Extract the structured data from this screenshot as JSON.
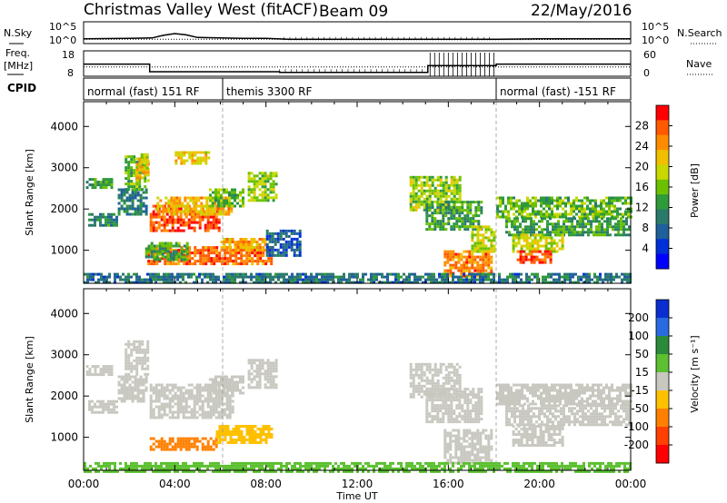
{
  "header": {
    "station": "Christmas Valley West (fitACF)",
    "beam": "Beam 09",
    "date": "22/May/2016"
  },
  "side_labels": {
    "nsky": "N.Sky",
    "nsearch": "N.Search",
    "freq": "Freq.",
    "freq_unit": "[MHz]",
    "nave": "Nave",
    "cpid": "CPID"
  },
  "chart_data": [
    {
      "type": "line",
      "panel": "noise",
      "series": [
        {
          "name": "N.Sky",
          "x": [
            0,
            2,
            3,
            3.5,
            4,
            4.5,
            5,
            6,
            7,
            8,
            8.5,
            9,
            10,
            12,
            14,
            15,
            16,
            18,
            18.2,
            20,
            22,
            24
          ],
          "values": [
            1.1,
            1.2,
            1.3,
            1.9,
            2.3,
            2.0,
            1.4,
            1.3,
            1.2,
            1.2,
            1.1,
            1.0,
            1.0,
            1.0,
            1.0,
            1.0,
            1.0,
            1.0,
            1.0,
            1.1,
            1.1,
            1.1
          ]
        },
        {
          "name": "N.Search",
          "x": [
            0,
            3,
            6,
            8.6,
            9,
            15,
            18,
            18.1,
            24
          ],
          "values": [
            1.0,
            1.0,
            1.0,
            1.0,
            0.9,
            0.9,
            0.9,
            0.9,
            1.0
          ]
        }
      ],
      "ylim": [
        0,
        5
      ],
      "ytick_labels": [
        "10^5",
        "10^0"
      ]
    },
    {
      "type": "line",
      "panel": "frequency",
      "series": [
        {
          "name": "Freq.",
          "x": [
            0,
            2.9,
            2.9,
            8.6,
            8.6,
            15.1,
            15.1,
            18.1,
            18.1,
            24
          ],
          "values": [
            12.8,
            12.8,
            9.8,
            9.8,
            9.5,
            9.5,
            12.2,
            12.2,
            12.8,
            12.8
          ]
        },
        {
          "name": "Nave",
          "x": [
            0,
            24
          ],
          "values": [
            22,
            22
          ]
        }
      ],
      "ylim": [
        8,
        18
      ],
      "ytick_labels_left": [
        "18",
        "8"
      ],
      "ytick_labels_right": [
        "60",
        "0"
      ]
    },
    {
      "type": "table",
      "panel": "cpid",
      "segments": [
        {
          "start": 0,
          "end": 6.1,
          "label": "normal (fast) 151 RF"
        },
        {
          "start": 6.1,
          "end": 18.1,
          "label": "themis 3300 RF"
        },
        {
          "start": 18.1,
          "end": 24,
          "label": "normal (fast) -151 RF"
        }
      ]
    },
    {
      "type": "heatmap",
      "panel": "power",
      "ylabel": "Slant Range [km]",
      "ylim": [
        200,
        4600
      ],
      "xlim": [
        0,
        24
      ],
      "yticks": [
        1000,
        2000,
        3000,
        4000
      ],
      "colorbar": {
        "label": "Power [dB]",
        "ticks": [
          "28",
          "24",
          "20",
          "16",
          "12",
          "8",
          "4"
        ],
        "colors": [
          "#ff0000",
          "#ff5a00",
          "#ff8c00",
          "#f0c000",
          "#c8d800",
          "#6cc000",
          "#2e9a3a",
          "#2a7a6a",
          "#1f5f9a",
          "#0030d8",
          "#0000ff"
        ]
      },
      "regions": [
        {
          "t0": 0.2,
          "t1": 1.5,
          "r0": 1600,
          "r1": 1900,
          "v": 10
        },
        {
          "t0": 0.1,
          "t1": 1.2,
          "r0": 2500,
          "r1": 2750,
          "v": 12
        },
        {
          "t0": 1.5,
          "t1": 2.7,
          "r0": 1900,
          "r1": 2500,
          "v": 9
        },
        {
          "t0": 1.8,
          "t1": 2.7,
          "r0": 2500,
          "r1": 3300,
          "v": 14
        },
        {
          "t0": 2.3,
          "t1": 2.8,
          "r0": 2700,
          "r1": 3250,
          "v": 22
        },
        {
          "t0": 2.5,
          "t1": 2.8,
          "r0": 3000,
          "r1": 3350,
          "v": 18
        },
        {
          "t0": 2.9,
          "t1": 6.0,
          "r0": 1500,
          "r1": 2100,
          "v": 27
        },
        {
          "t0": 3.2,
          "t1": 6.5,
          "r0": 1900,
          "r1": 2300,
          "v": 22
        },
        {
          "t0": 5.5,
          "t1": 7.0,
          "r0": 2100,
          "r1": 2500,
          "v": 14
        },
        {
          "t0": 2.8,
          "t1": 8.2,
          "r0": 700,
          "r1": 1100,
          "v": 26
        },
        {
          "t0": 2.7,
          "t1": 4.5,
          "r0": 800,
          "r1": 1200,
          "v": 13
        },
        {
          "t0": 6.0,
          "t1": 8.0,
          "r0": 1000,
          "r1": 1300,
          "v": 23
        },
        {
          "t0": 7.2,
          "t1": 8.5,
          "r0": 2200,
          "r1": 2900,
          "v": 16
        },
        {
          "t0": 4.0,
          "t1": 5.5,
          "r0": 3100,
          "r1": 3400,
          "v": 20
        },
        {
          "t0": 8.0,
          "t1": 9.5,
          "r0": 900,
          "r1": 1500,
          "v": 6
        },
        {
          "t0": 14.3,
          "t1": 16.5,
          "r0": 2000,
          "r1": 2800,
          "v": 16
        },
        {
          "t0": 15.0,
          "t1": 17.5,
          "r0": 1500,
          "r1": 2200,
          "v": 12
        },
        {
          "t0": 15.8,
          "t1": 17.9,
          "r0": 400,
          "r1": 1000,
          "v": 25
        },
        {
          "t0": 17.0,
          "t1": 18.0,
          "r0": 1000,
          "r1": 1600,
          "v": 18
        },
        {
          "t0": 18.1,
          "t1": 24.0,
          "r0": 1800,
          "r1": 2300,
          "v": 14
        },
        {
          "t0": 18.5,
          "t1": 24.0,
          "r0": 1400,
          "r1": 1800,
          "v": 12
        },
        {
          "t0": 18.8,
          "t1": 21.0,
          "r0": 1000,
          "r1": 1400,
          "v": 18
        },
        {
          "t0": 19.0,
          "t1": 20.5,
          "r0": 700,
          "r1": 1000,
          "v": 27
        },
        {
          "t0": 0.0,
          "t1": 24.0,
          "r0": 200,
          "r1": 450,
          "v": 8
        }
      ]
    },
    {
      "type": "heatmap",
      "panel": "velocity",
      "ylabel": "Slant Range [km]",
      "xlabel": "Time UT",
      "ylim": [
        200,
        4600
      ],
      "xlim": [
        0,
        24
      ],
      "yticks": [
        1000,
        2000,
        3000,
        4000
      ],
      "xticks": [
        0,
        4,
        8,
        12,
        16,
        20,
        24
      ],
      "xtick_labels": [
        "00:00",
        "04:00",
        "08:00",
        "12:00",
        "16:00",
        "20:00",
        "00:00"
      ],
      "colorbar": {
        "label": "Velocity [m s⁻¹]",
        "ticks": [
          "200",
          "100",
          "50",
          "15",
          "-15",
          "-50",
          "-100",
          "-200"
        ],
        "colors": [
          "#0a2ed0",
          "#2a6ae0",
          "#2a8a3a",
          "#5cc030",
          "#c8c8c0",
          "#ffc000",
          "#ff8000",
          "#ff4000",
          "#ff0000"
        ]
      },
      "regions": [
        {
          "t0": 0.2,
          "t1": 1.5,
          "r0": 1600,
          "r1": 1900,
          "v": 0
        },
        {
          "t0": 0.1,
          "t1": 1.2,
          "r0": 2500,
          "r1": 2750,
          "v": 0
        },
        {
          "t0": 1.5,
          "t1": 2.7,
          "r0": 1900,
          "r1": 2500,
          "v": 0
        },
        {
          "t0": 1.8,
          "t1": 2.8,
          "r0": 2500,
          "r1": 3350,
          "v": 0
        },
        {
          "t0": 2.9,
          "t1": 6.5,
          "r0": 1500,
          "r1": 2300,
          "v": 0
        },
        {
          "t0": 5.5,
          "t1": 7.0,
          "r0": 2100,
          "r1": 2500,
          "v": 0
        },
        {
          "t0": 7.2,
          "t1": 8.5,
          "r0": 2200,
          "r1": 2900,
          "v": 0
        },
        {
          "t0": 2.9,
          "t1": 5.8,
          "r0": 700,
          "r1": 1000,
          "v": -80
        },
        {
          "t0": 5.8,
          "t1": 8.2,
          "r0": 900,
          "r1": 1300,
          "v": -30
        },
        {
          "t0": 14.3,
          "t1": 16.5,
          "r0": 2000,
          "r1": 2800,
          "v": 0
        },
        {
          "t0": 15.0,
          "t1": 17.5,
          "r0": 1400,
          "r1": 2200,
          "v": 0
        },
        {
          "t0": 15.8,
          "t1": 17.9,
          "r0": 400,
          "r1": 1200,
          "v": 0
        },
        {
          "t0": 18.1,
          "t1": 24.0,
          "r0": 1800,
          "r1": 2300,
          "v": 0
        },
        {
          "t0": 18.5,
          "t1": 24.0,
          "r0": 1300,
          "r1": 1800,
          "v": 0
        },
        {
          "t0": 18.8,
          "t1": 21.0,
          "r0": 800,
          "r1": 1300,
          "v": 0
        },
        {
          "t0": 0.0,
          "t1": 24.0,
          "r0": 200,
          "r1": 400,
          "v": 20
        }
      ]
    }
  ]
}
